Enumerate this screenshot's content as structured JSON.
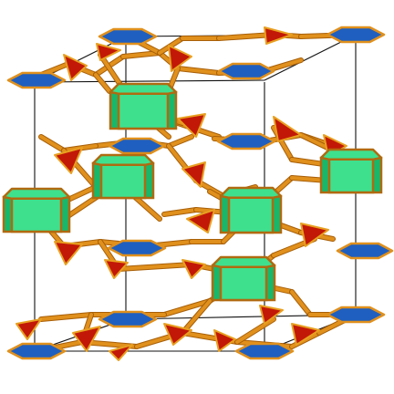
{
  "figure": {
    "kind": "crystal-structure-framework",
    "colors": {
      "background": "#ffffff",
      "cell_edge": "#111111",
      "linker": "#e0901c",
      "linker_outline": "#a85f08",
      "triangle": "#c21807",
      "triangle_edge": "#e8a020",
      "flat_hexagon": "#1f5fbf",
      "flat_hexagon_edge": "#e0901c",
      "prism_face": "#3ee08e",
      "prism_side": "#17b86a",
      "prism_edge": "#b06a10"
    }
  }
}
